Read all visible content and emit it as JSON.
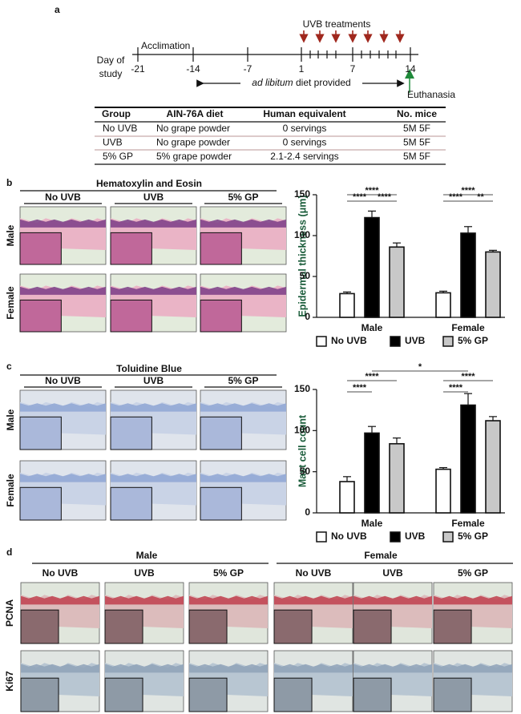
{
  "panel_a": {
    "label": "a",
    "timeline": {
      "uvb_label": "UVB treatments",
      "acclimation": "Acclimation",
      "axis_label_lines": [
        "Day of",
        "study"
      ],
      "days": [
        "-21",
        "-14",
        "-7",
        "1",
        "7",
        "14"
      ],
      "diet_italic": "ad libitum",
      "diet_text": " diet provided",
      "end_label": "Euthanasia"
    },
    "table": {
      "header": [
        "Group",
        "AIN-76A diet",
        "Human equivalent",
        "No. mice"
      ],
      "rows": [
        [
          "No UVB",
          "No grape powder",
          "0 servings",
          "5M 5F"
        ],
        [
          "UVB",
          "No grape powder",
          "0 servings",
          "5M 5F"
        ],
        [
          "5% GP",
          "5% grape powder",
          "2.1-2.4 servings",
          "5M 5F"
        ]
      ]
    }
  },
  "panel_b": {
    "label": "b",
    "stain": "Hematoxylin and Eosin",
    "columns": [
      "No UVB",
      "UVB",
      "5% GP"
    ],
    "rows": [
      "Male",
      "Female"
    ]
  },
  "panel_c": {
    "label": "c",
    "stain": "Toluidine Blue",
    "columns": [
      "No UVB",
      "UVB",
      "5% GP"
    ],
    "rows": [
      "Male",
      "Female"
    ]
  },
  "panel_d": {
    "label": "d",
    "groups": [
      "Male",
      "Female"
    ],
    "columns": [
      "No UVB",
      "UVB",
      "5% GP"
    ],
    "rows": [
      "PCNA",
      "Ki67"
    ]
  },
  "chart_data": [
    {
      "type": "bar",
      "y_label": "Epidermal thickness (μm)",
      "categories": [
        "Male",
        "Female"
      ],
      "series": [
        {
          "name": "No UVB",
          "color": "#ffffff",
          "values": [
            29,
            30
          ],
          "errors": [
            2,
            2
          ]
        },
        {
          "name": "UVB",
          "color": "#000000",
          "values": [
            122,
            103
          ],
          "errors": [
            8,
            8
          ]
        },
        {
          "name": "5% GP",
          "color": "#c8c8c8",
          "values": [
            86,
            80
          ],
          "errors": [
            5,
            2
          ]
        }
      ],
      "ylim": [
        0,
        150
      ],
      "yticks": [
        0,
        50,
        100,
        150
      ],
      "annotations": [
        "****",
        "****",
        "****",
        "****",
        "****",
        "**"
      ]
    },
    {
      "type": "bar",
      "y_label": "Mast cell count",
      "categories": [
        "Male",
        "Female"
      ],
      "series": [
        {
          "name": "No UVB",
          "color": "#ffffff",
          "values": [
            38,
            53
          ],
          "errors": [
            6,
            2
          ]
        },
        {
          "name": "UVB",
          "color": "#000000",
          "values": [
            97,
            131
          ],
          "errors": [
            8,
            14
          ]
        },
        {
          "name": "5% GP",
          "color": "#c8c8c8",
          "values": [
            84,
            112
          ],
          "errors": [
            7,
            5
          ]
        }
      ],
      "ylim": [
        0,
        150
      ],
      "yticks": [
        0,
        50,
        100,
        150
      ],
      "annotations": [
        "****",
        "****",
        "****",
        "****",
        "*"
      ]
    }
  ]
}
